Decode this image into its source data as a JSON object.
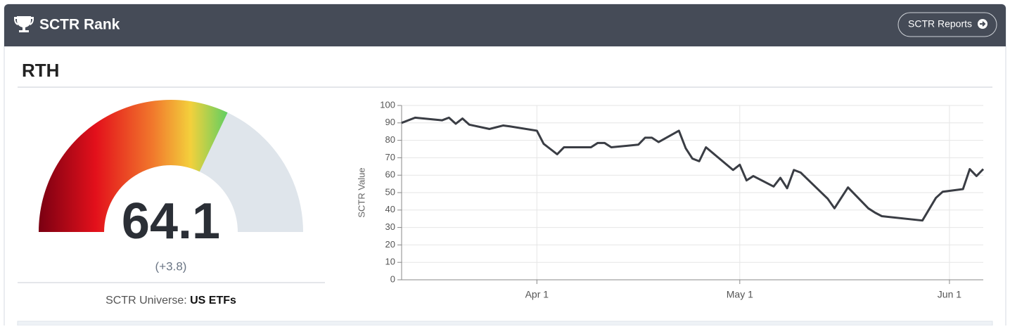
{
  "header": {
    "title": "SCTR Rank",
    "button": "SCTR Reports"
  },
  "symbol": "RTH",
  "gauge": {
    "value": 64.1,
    "lim": [
      0,
      100
    ],
    "change": "(+3.8)"
  },
  "universe": {
    "label": "SCTR Universe:",
    "value": "US ETFs"
  },
  "chart_data": {
    "type": "line",
    "ylabel": "SCTR Value",
    "color": "#3a3d44",
    "grid": true,
    "x": [
      "Mar 12",
      "Mar 14",
      "Mar 18",
      "Mar 19",
      "Mar 20",
      "Mar 21",
      "Mar 22",
      "Mar 25",
      "Mar 26",
      "Mar 27",
      "Mar 28",
      "Apr 1",
      "Apr 2",
      "Apr 3",
      "Apr 4",
      "Apr 5",
      "Apr 8",
      "Apr 9",
      "Apr 10",
      "Apr 11",
      "Apr 12",
      "Apr 16",
      "Apr 17",
      "Apr 18",
      "Apr 19",
      "Apr 22",
      "Apr 23",
      "Apr 24",
      "Apr 25",
      "Apr 26",
      "Apr 30",
      "May 1",
      "May 2",
      "May 3",
      "May 6",
      "May 7",
      "May 8",
      "May 9",
      "May 10",
      "May 14",
      "May 15",
      "May 17",
      "May 20",
      "May 21",
      "May 22",
      "May 28",
      "May 29",
      "May 30",
      "May 31",
      "Jun 1",
      "Jun 3",
      "Jun 4",
      "Jun 5",
      "Jun 6"
    ],
    "values": [
      90,
      93,
      91.5,
      93,
      89.5,
      92.5,
      89,
      86.5,
      87.5,
      88.5,
      88,
      85.5,
      78,
      75,
      72,
      76,
      76,
      76,
      78.5,
      78.5,
      76,
      77.5,
      81.5,
      81.5,
      79,
      85.5,
      75.5,
      69.5,
      68,
      76,
      63,
      66,
      57,
      59.5,
      53.5,
      58.5,
      52.5,
      63,
      61.5,
      46.5,
      41,
      53,
      41,
      38.5,
      36.5,
      34,
      40.5,
      47,
      50.5,
      51,
      52,
      63.5,
      59.5,
      63.5
    ],
    "xlim": [
      "Mar 12",
      "Jun 6"
    ],
    "xticks": [
      "Apr 1",
      "May 1",
      "Jun 1"
    ],
    "ylim": [
      0,
      100
    ],
    "yticks": [
      0,
      10,
      20,
      30,
      40,
      50,
      60,
      70,
      80,
      90,
      100
    ]
  }
}
